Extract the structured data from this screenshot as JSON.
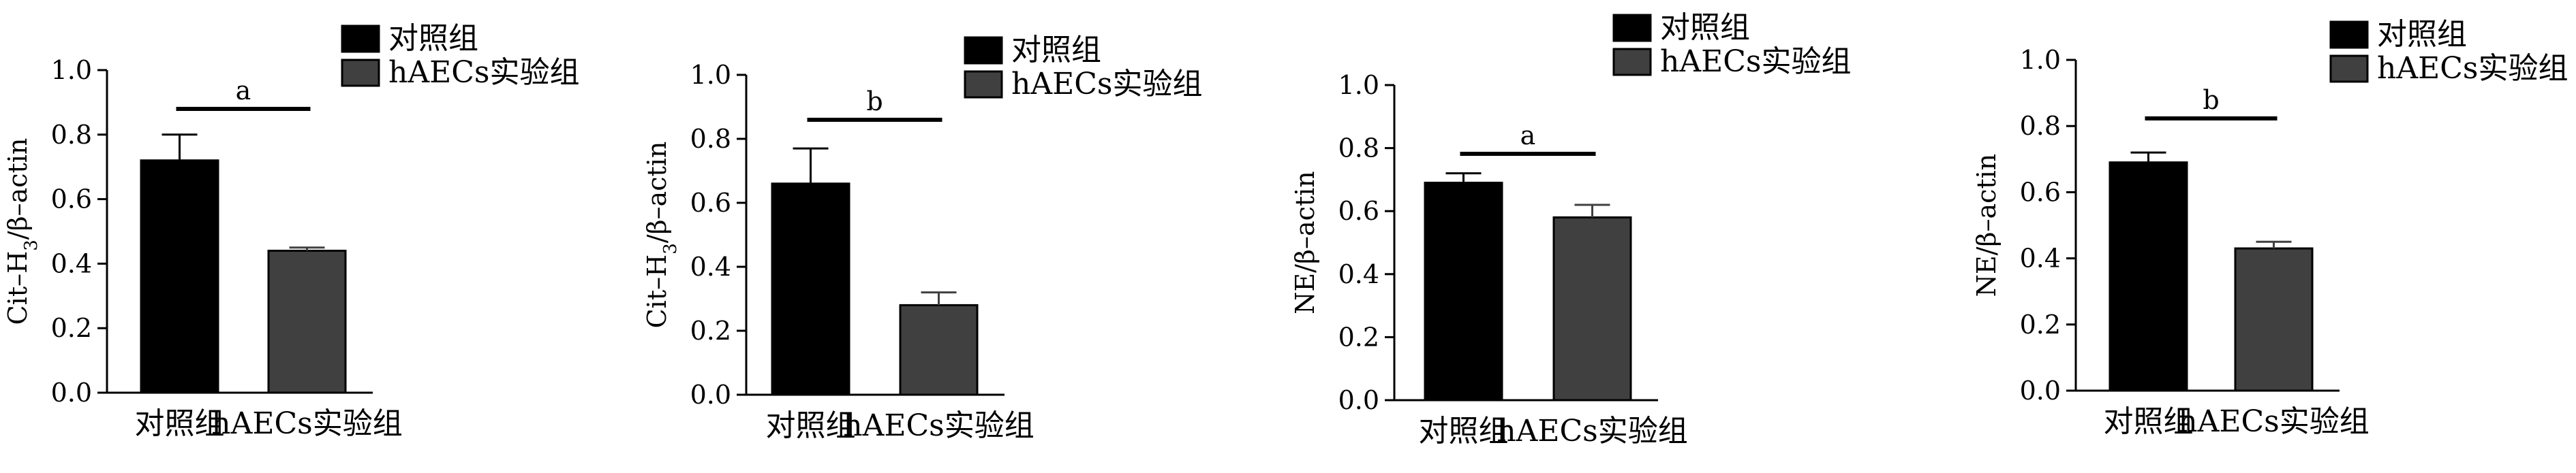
{
  "chart_data": [
    {
      "type": "bar",
      "categories": [
        "对照组",
        "hAECs实验组"
      ],
      "values": [
        0.72,
        0.44
      ],
      "errors": [
        0.08,
        0.01
      ],
      "ylabel": "Cit–H3/β–actin",
      "ylabel_main": "Cit–H",
      "ylabel_sub": "3",
      "ylabel_rest": "/β–actin",
      "ylim": [
        0,
        1.0
      ],
      "yticks": [
        "0.0",
        "0.2",
        "0.4",
        "0.6",
        "0.8",
        "1.0"
      ],
      "significance": "a",
      "legend": [
        {
          "name": "对照组",
          "color": "#000000"
        },
        {
          "name": "hAECs实验组",
          "color": "#404040"
        }
      ],
      "legend_position": "top-right",
      "grid": false
    },
    {
      "type": "bar",
      "categories": [
        "对照组",
        "hAECs实验组"
      ],
      "values": [
        0.66,
        0.28
      ],
      "errors": [
        0.11,
        0.04
      ],
      "ylabel": "Cit–H3/β–actin",
      "ylabel_main": "Cit–H",
      "ylabel_sub": "3",
      "ylabel_rest": "/β–actin",
      "ylim": [
        0,
        1.0
      ],
      "yticks": [
        "0.0",
        "0.2",
        "0.4",
        "0.6",
        "0.8",
        "1.0"
      ],
      "significance": "b",
      "legend": [
        {
          "name": "对照组",
          "color": "#000000"
        },
        {
          "name": "hAECs实验组",
          "color": "#404040"
        }
      ],
      "legend_position": "top-right",
      "grid": false
    },
    {
      "type": "bar",
      "categories": [
        "对照组",
        "hAECs实验组"
      ],
      "values": [
        0.69,
        0.58
      ],
      "errors": [
        0.03,
        0.04
      ],
      "ylabel": "NE/β–actin",
      "ylabel_main": "NE/β–actin",
      "ylabel_sub": "",
      "ylabel_rest": "",
      "ylim": [
        0,
        1.0
      ],
      "yticks": [
        "0.0",
        "0.2",
        "0.4",
        "0.6",
        "0.8",
        "1.0"
      ],
      "significance": "a",
      "legend": [
        {
          "name": "对照组",
          "color": "#000000"
        },
        {
          "name": "hAECs实验组",
          "color": "#404040"
        }
      ],
      "legend_position": "top-right",
      "grid": false
    },
    {
      "type": "bar",
      "categories": [
        "对照组",
        "hAECs实验组"
      ],
      "values": [
        0.69,
        0.43
      ],
      "errors": [
        0.03,
        0.02
      ],
      "ylabel": "NE/β–actin",
      "ylabel_main": "NE/β–actin",
      "ylabel_sub": "",
      "ylabel_rest": "",
      "ylim": [
        0,
        1.0
      ],
      "yticks": [
        "0.0",
        "0.2",
        "0.4",
        "0.6",
        "0.8",
        "1.0"
      ],
      "significance": "b",
      "legend": [
        {
          "name": "对照组",
          "color": "#000000"
        },
        {
          "name": "hAECs实验组",
          "color": "#404040"
        }
      ],
      "legend_position": "top-right",
      "grid": false
    }
  ]
}
